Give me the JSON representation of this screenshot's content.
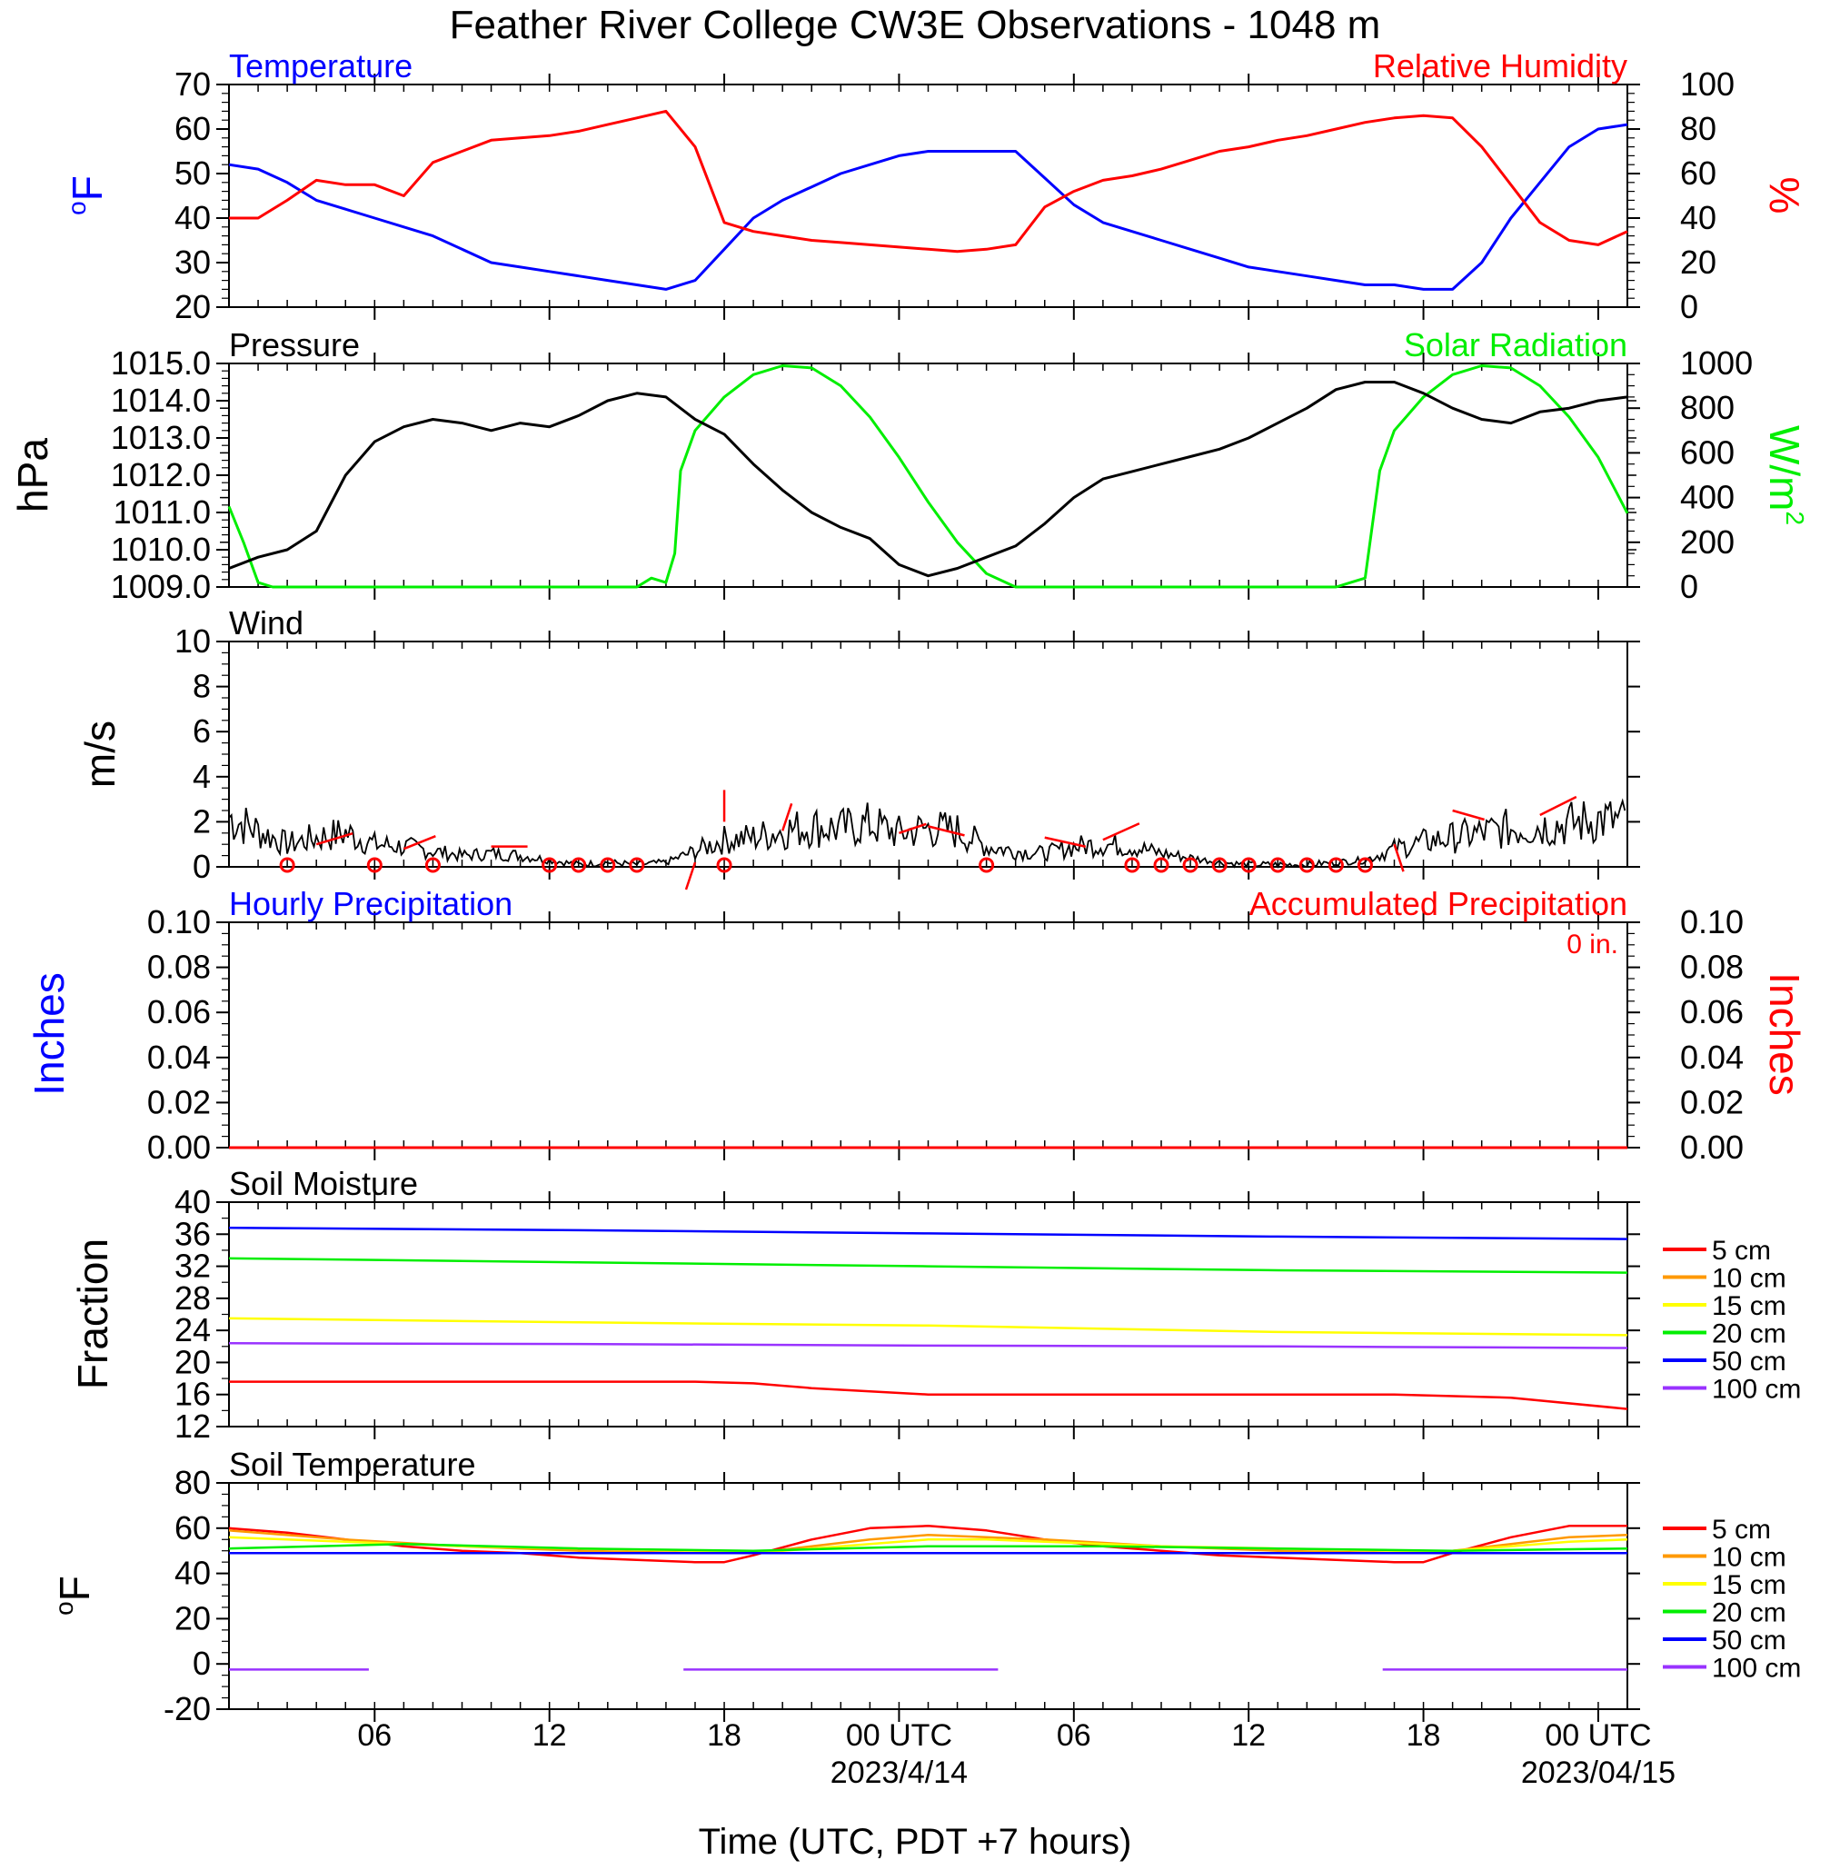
{
  "title": "Feather River College CW3E Observations - 1048 m",
  "xlabel": "Time (UTC, PDT +7 hours)",
  "time_axis": {
    "range_hours": [
      0,
      48
    ],
    "tick_hours": [
      5,
      11,
      17,
      23,
      29,
      35,
      41,
      47
    ],
    "tick_labels": [
      "06",
      "12",
      "18",
      "00 UTC",
      "06",
      "12",
      "18",
      "00 UTC"
    ],
    "date_labels": [
      {
        "at_hour": 23,
        "text": "2023/4/14"
      },
      {
        "at_hour": 47,
        "text": "2023/04/15"
      }
    ]
  },
  "colors": {
    "temperature": "#0000ff",
    "rh": "#ff0000",
    "pressure": "#000000",
    "solar": "#00ee00",
    "wind": "#000000",
    "barb": "#ff0000",
    "hourly_precip": "#0000ff",
    "accum_precip": "#ff0000"
  },
  "legend": {
    "labels": [
      "5 cm",
      "10 cm",
      "15 cm",
      "20 cm",
      "50 cm",
      "100 cm"
    ],
    "colors": [
      "#ff0000",
      "#ff9900",
      "#ffff00",
      "#00ee00",
      "#0000ff",
      "#9933ff"
    ]
  },
  "chart_data": [
    {
      "type": "line",
      "panel": "temp_rh",
      "left_title": "Temperature",
      "right_title": "Relative Humidity",
      "ylabel_left": "oF",
      "ylabel_right": "%",
      "ylim_left": [
        20,
        70
      ],
      "ylim_right": [
        0,
        100
      ],
      "yticks_left": [
        "20",
        "30",
        "40",
        "50",
        "60",
        "70"
      ],
      "yticks_right": [
        "0",
        "20",
        "40",
        "60",
        "80",
        "100"
      ],
      "series": [
        {
          "name": "Temperature",
          "axis": "left",
          "x": [
            0,
            1,
            2,
            3,
            4,
            5,
            6,
            7,
            8,
            9,
            10,
            11,
            12,
            13,
            14,
            15,
            16,
            17,
            18,
            19,
            20,
            21,
            22,
            23,
            24,
            25,
            26,
            27,
            28,
            29,
            30,
            31,
            32,
            33,
            34,
            35,
            36,
            37,
            38,
            39,
            40,
            41,
            42,
            43,
            44,
            45,
            46,
            47,
            48
          ],
          "y": [
            52,
            51,
            48,
            44,
            42,
            40,
            38,
            36,
            33,
            30,
            29,
            28,
            27,
            26,
            25,
            24,
            26,
            33,
            40,
            44,
            47,
            50,
            52,
            54,
            55,
            55,
            55,
            55,
            49,
            43,
            39,
            37,
            35,
            33,
            31,
            29,
            28,
            27,
            26,
            25,
            25,
            24,
            24,
            30,
            40,
            48,
            56,
            60,
            61
          ]
        },
        {
          "name": "Relative Humidity",
          "axis": "right",
          "x": [
            0,
            1,
            2,
            3,
            4,
            5,
            6,
            7,
            8,
            9,
            10,
            11,
            12,
            13,
            14,
            15,
            16,
            17,
            18,
            19,
            20,
            21,
            22,
            23,
            24,
            25,
            26,
            27,
            28,
            29,
            30,
            31,
            32,
            33,
            34,
            35,
            36,
            37,
            38,
            39,
            40,
            41,
            42,
            43,
            44,
            45,
            46,
            47,
            48
          ],
          "y": [
            40,
            40,
            48,
            57,
            55,
            55,
            50,
            65,
            70,
            75,
            76,
            77,
            79,
            82,
            85,
            88,
            72,
            38,
            34,
            32,
            30,
            29,
            28,
            27,
            26,
            25,
            26,
            28,
            45,
            52,
            57,
            59,
            62,
            66,
            70,
            72,
            75,
            77,
            80,
            83,
            85,
            86,
            85,
            72,
            55,
            38,
            30,
            28,
            34
          ]
        }
      ]
    },
    {
      "type": "line",
      "panel": "pressure_solar",
      "left_title": "Pressure",
      "right_title": "Solar Radiation",
      "ylabel_left": "hPa",
      "ylabel_right": "W/m2",
      "ylim_left": [
        1009,
        1015
      ],
      "ylim_right": [
        0,
        1000
      ],
      "yticks_left": [
        "1009.0",
        "1010.0",
        "1011.0",
        "1012.0",
        "1013.0",
        "1014.0",
        "1015.0"
      ],
      "yticks_right": [
        "0",
        "200",
        "400",
        "600",
        "800",
        "1000"
      ],
      "series": [
        {
          "name": "Pressure",
          "axis": "left",
          "x": [
            0,
            1,
            2,
            3,
            4,
            5,
            6,
            7,
            8,
            9,
            10,
            11,
            12,
            13,
            14,
            15,
            16,
            17,
            18,
            19,
            20,
            21,
            22,
            23,
            24,
            25,
            26,
            27,
            28,
            29,
            30,
            31,
            32,
            33,
            34,
            35,
            36,
            37,
            38,
            39,
            40,
            41,
            42,
            43,
            44,
            45,
            46,
            47,
            48
          ],
          "y": [
            1009.5,
            1009.8,
            1010.0,
            1010.5,
            1012.0,
            1012.9,
            1013.3,
            1013.5,
            1013.4,
            1013.2,
            1013.4,
            1013.3,
            1013.6,
            1014.0,
            1014.2,
            1014.1,
            1013.5,
            1013.1,
            1012.3,
            1011.6,
            1011.0,
            1010.6,
            1010.3,
            1009.6,
            1009.3,
            1009.5,
            1009.8,
            1010.1,
            1010.7,
            1011.4,
            1011.9,
            1012.1,
            1012.3,
            1012.5,
            1012.7,
            1013.0,
            1013.4,
            1013.8,
            1014.3,
            1014.5,
            1014.5,
            1014.2,
            1013.8,
            1013.5,
            1013.4,
            1013.7,
            1013.8,
            1014.0,
            1014.1
          ]
        },
        {
          "name": "Solar Radiation",
          "axis": "right",
          "x": [
            0,
            0.5,
            1,
            1.5,
            2,
            13,
            14,
            14.5,
            15,
            15.3,
            15.5,
            16,
            17,
            18,
            19,
            20,
            21,
            22,
            23,
            24,
            25,
            26,
            27,
            38,
            38.5,
            39,
            39.5,
            40,
            41,
            42,
            43,
            44,
            45,
            46,
            47,
            48
          ],
          "y": [
            360,
            200,
            20,
            0,
            0,
            0,
            0,
            40,
            20,
            150,
            520,
            700,
            850,
            950,
            990,
            980,
            900,
            760,
            580,
            380,
            200,
            60,
            0,
            0,
            20,
            40,
            520,
            700,
            850,
            950,
            990,
            980,
            900,
            760,
            580,
            330
          ]
        }
      ]
    },
    {
      "type": "line",
      "panel": "wind",
      "left_title": "Wind",
      "ylabel_left": "m/s",
      "ylim_left": [
        0,
        10
      ],
      "yticks_left": [
        "0",
        "2",
        "4",
        "6",
        "8",
        "10"
      ],
      "series": [
        {
          "name": "Wind",
          "axis": "left",
          "x": [
            0,
            1,
            2,
            3,
            4,
            5,
            6,
            7,
            8,
            9,
            10,
            11,
            12,
            13,
            14,
            15,
            16,
            17,
            18,
            19,
            20,
            21,
            22,
            23,
            24,
            25,
            26,
            27,
            28,
            29,
            30,
            31,
            32,
            33,
            34,
            35,
            36,
            37,
            38,
            39,
            40,
            41,
            42,
            43,
            44,
            45,
            46,
            47,
            48
          ],
          "y": [
            2.2,
            1.6,
            1.0,
            1.3,
            1.5,
            1.0,
            0.9,
            0.7,
            0.5,
            0.6,
            0.5,
            0.3,
            0.1,
            0.2,
            0.1,
            0.2,
            0.7,
            1.2,
            1.3,
            1.6,
            1.8,
            1.7,
            1.9,
            1.5,
            1.7,
            1.6,
            0.9,
            0.7,
            0.6,
            0.9,
            1.0,
            0.9,
            0.6,
            0.4,
            0.2,
            0.1,
            0.1,
            0.1,
            0.2,
            0.3,
            0.8,
            1.1,
            1.3,
            1.5,
            1.7,
            1.8,
            1.9,
            2.1,
            2.0
          ]
        }
      ]
    },
    {
      "type": "line",
      "panel": "precip",
      "left_title": "Hourly Precipitation",
      "right_title": "Accumulated Precipitation",
      "annotation": "0 in.",
      "ylabel_left": "Inches",
      "ylabel_right": "Inches",
      "ylim_left": [
        0,
        0.1
      ],
      "ylim_right": [
        0,
        0.1
      ],
      "yticks_left": [
        "0.00",
        "0.02",
        "0.04",
        "0.06",
        "0.08",
        "0.10"
      ],
      "yticks_right": [
        "0.00",
        "0.02",
        "0.04",
        "0.06",
        "0.08",
        "0.10"
      ],
      "series": [
        {
          "name": "Hourly Precipitation",
          "axis": "left",
          "x": [
            0,
            48
          ],
          "y": [
            0,
            0
          ]
        },
        {
          "name": "Accumulated Precipitation",
          "axis": "right",
          "x": [
            0,
            48
          ],
          "y": [
            0,
            0
          ]
        }
      ]
    },
    {
      "type": "line",
      "panel": "soil_moisture",
      "left_title": "Soil Moisture",
      "ylabel_left": "Fraction",
      "ylim_left": [
        12,
        40
      ],
      "yticks_left": [
        "12",
        "16",
        "20",
        "24",
        "28",
        "32",
        "36",
        "40"
      ],
      "series": [
        {
          "name": "5 cm",
          "x": [
            0,
            16,
            18,
            20,
            24,
            30,
            36,
            40,
            44,
            48
          ],
          "y": [
            17.6,
            17.6,
            17.4,
            16.8,
            16.0,
            16.0,
            16.0,
            16.0,
            15.6,
            14.2
          ]
        },
        {
          "name": "15 cm",
          "x": [
            0,
            12,
            24,
            36,
            48
          ],
          "y": [
            25.5,
            25.0,
            24.6,
            23.8,
            23.4
          ]
        },
        {
          "name": "20 cm",
          "x": [
            0,
            12,
            24,
            36,
            48
          ],
          "y": [
            33.0,
            32.5,
            32.0,
            31.5,
            31.2
          ]
        },
        {
          "name": "50 cm",
          "x": [
            0,
            12,
            24,
            36,
            48
          ],
          "y": [
            36.8,
            36.5,
            36.1,
            35.7,
            35.4
          ]
        },
        {
          "name": "100 cm",
          "x": [
            0,
            12,
            24,
            36,
            48
          ],
          "y": [
            22.4,
            22.3,
            22.1,
            22.0,
            21.8
          ]
        }
      ]
    },
    {
      "type": "line",
      "panel": "soil_temp",
      "left_title": "Soil Temperature",
      "ylabel_left": "oF",
      "ylim_left": [
        -20,
        80
      ],
      "yticks_left": [
        "-20",
        "0",
        "20",
        "40",
        "60",
        "80"
      ],
      "series": [
        {
          "name": "5 cm",
          "x": [
            0,
            2,
            4,
            6,
            8,
            10,
            12,
            14,
            16,
            17,
            18,
            20,
            22,
            24,
            26,
            28,
            30,
            32,
            34,
            36,
            38,
            40,
            41,
            42,
            44,
            46,
            48
          ],
          "y": [
            60,
            58,
            55,
            52,
            50,
            49,
            47,
            46,
            45,
            45,
            48,
            55,
            60,
            61,
            59,
            55,
            52,
            50,
            48,
            47,
            46,
            45,
            45,
            49,
            56,
            61,
            61
          ]
        },
        {
          "name": "10 cm",
          "x": [
            0,
            4,
            8,
            12,
            16,
            18,
            20,
            22,
            24,
            26,
            28,
            32,
            36,
            40,
            42,
            44,
            46,
            48
          ],
          "y": [
            59,
            55,
            52,
            50,
            49,
            49,
            52,
            55,
            57,
            56,
            55,
            52,
            50,
            49,
            50,
            53,
            56,
            57
          ]
        },
        {
          "name": "15 cm",
          "x": [
            0,
            4,
            8,
            12,
            16,
            18,
            20,
            22,
            24,
            26,
            28,
            32,
            36,
            40,
            42,
            44,
            46,
            48
          ],
          "y": [
            56,
            54,
            52,
            51,
            50,
            49,
            51,
            53,
            55,
            55,
            54,
            52,
            51,
            50,
            50,
            52,
            54,
            55
          ]
        },
        {
          "name": "20 cm",
          "x": [
            0,
            6,
            12,
            18,
            24,
            30,
            36,
            42,
            48
          ],
          "y": [
            51,
            53,
            51,
            50,
            52,
            52,
            51,
            50,
            51
          ]
        },
        {
          "name": "50 cm",
          "x": [
            0,
            12,
            24,
            36,
            48
          ],
          "y": [
            49,
            49,
            49,
            49,
            49
          ]
        },
        {
          "name": "100 cm",
          "x": [
            0,
            4.8,
            15.6,
            26.4,
            39.6,
            48
          ],
          "y": [
            -3,
            -3,
            -3,
            -2,
            -2,
            -2
          ]
        }
      ]
    },
    {
      "type": "scatter",
      "panel": "wind_barbs",
      "name": "wind barbs (calm circles)",
      "calm_hours": [
        2,
        5,
        7,
        11,
        12,
        13,
        14,
        17,
        26,
        31,
        32,
        33,
        34,
        35,
        36,
        37,
        38,
        39
      ]
    }
  ]
}
